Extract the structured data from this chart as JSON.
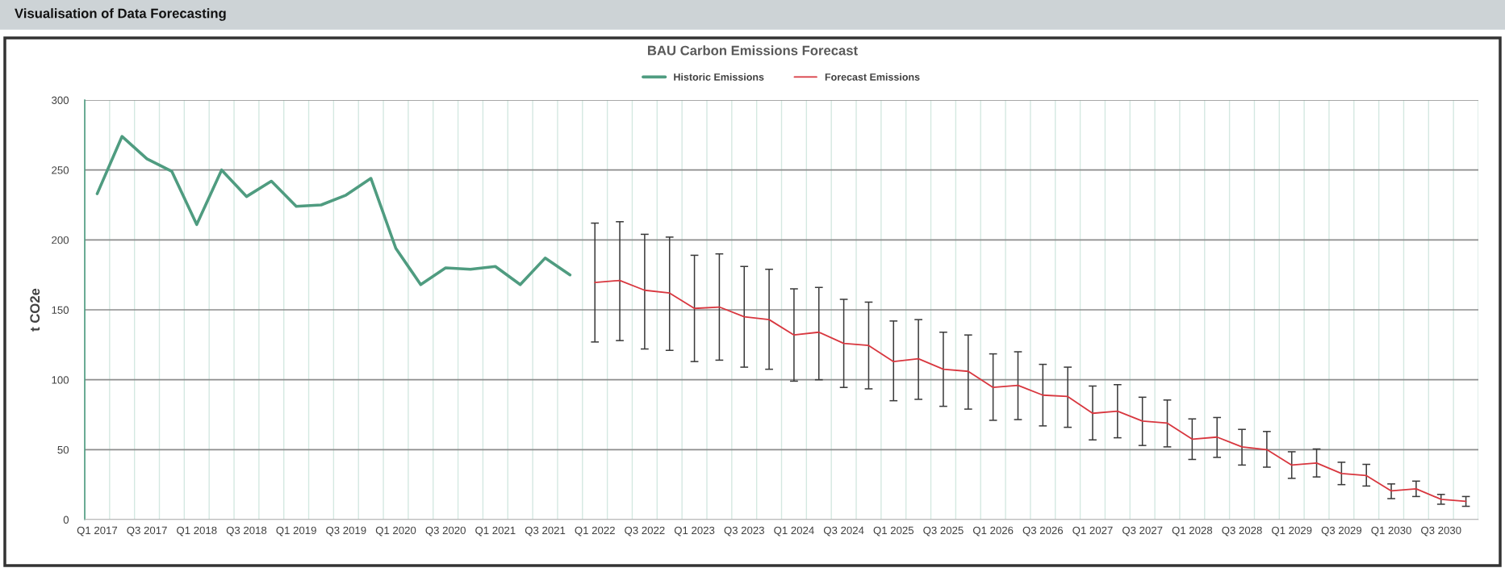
{
  "chart_data": {
    "type": "line",
    "title": "Visualisation of Data Forecasting",
    "subtitle": "BAU Carbon Emissions Forecast",
    "ylabel": "t CO2e",
    "categories": [
      "Q1 2017",
      null,
      "Q3 2017",
      null,
      "Q1 2018",
      null,
      "Q3 2018",
      null,
      "Q1 2019",
      null,
      "Q3 2019",
      null,
      "Q1 2020",
      null,
      "Q3 2020",
      null,
      "Q1 2021",
      null,
      "Q3 2021",
      null,
      "Q1 2022",
      null,
      "Q3 2022",
      null,
      "Q1 2023",
      null,
      "Q3 2023",
      null,
      "Q1 2024",
      null,
      "Q3 2024",
      null,
      "Q1 2025",
      null,
      "Q3 2025",
      null,
      "Q1 2026",
      null,
      "Q3 2026",
      null,
      "Q1 2027",
      null,
      "Q3 2027",
      null,
      "Q1 2028",
      null,
      "Q3 2028",
      null,
      "Q1 2029",
      null,
      "Q3 2029",
      null,
      "Q1 2030",
      null,
      "Q3 2030",
      null
    ],
    "series": [
      {
        "name": "Historic Emissions",
        "color": "#4f9c80",
        "values": [
          233,
          274,
          258,
          249,
          211,
          250,
          231,
          242,
          224,
          225,
          232,
          244,
          194,
          168,
          180,
          179,
          181,
          168,
          187,
          175,
          null,
          null,
          null,
          null,
          null,
          null,
          null,
          null,
          null,
          null,
          null,
          null,
          null,
          null,
          null,
          null,
          null,
          null,
          null,
          null,
          null,
          null,
          null,
          null,
          null,
          null,
          null,
          null,
          null,
          null,
          null,
          null,
          null,
          null,
          null,
          null
        ]
      },
      {
        "name": "Forecast Emissions",
        "color": "#d8373f",
        "values": [
          null,
          null,
          null,
          null,
          null,
          null,
          null,
          null,
          null,
          null,
          null,
          null,
          null,
          null,
          null,
          null,
          null,
          null,
          null,
          null,
          169.5,
          171,
          164,
          162,
          151,
          152,
          145,
          143,
          132,
          134,
          126,
          124.5,
          113,
          115,
          107.5,
          106,
          94.5,
          96,
          89,
          88,
          76,
          77.5,
          70.5,
          69,
          57.5,
          59,
          52,
          50,
          39,
          40.5,
          33,
          31.5,
          20.5,
          22,
          14.5,
          13
        ],
        "errors": [
          null,
          null,
          null,
          null,
          null,
          null,
          null,
          null,
          null,
          null,
          null,
          null,
          null,
          null,
          null,
          null,
          null,
          null,
          null,
          null,
          [
            127,
            212
          ],
          [
            128,
            213
          ],
          [
            122,
            204
          ],
          [
            121,
            202
          ],
          [
            113,
            189
          ],
          [
            114,
            190
          ],
          [
            109,
            181
          ],
          [
            107.5,
            179
          ],
          [
            99,
            165
          ],
          [
            100,
            166
          ],
          [
            94.5,
            157.5
          ],
          [
            93.5,
            155.5
          ],
          [
            85,
            142
          ],
          [
            86,
            143
          ],
          [
            81,
            134
          ],
          [
            79,
            132
          ],
          [
            71,
            118.5
          ],
          [
            71.5,
            120
          ],
          [
            67,
            111
          ],
          [
            66,
            109
          ],
          [
            57,
            95.5
          ],
          [
            58.5,
            96.5
          ],
          [
            53,
            87.5
          ],
          [
            52,
            85.5
          ],
          [
            43,
            72
          ],
          [
            44.5,
            73
          ],
          [
            39,
            64.5
          ],
          [
            37.5,
            63
          ],
          [
            29.5,
            48.5
          ],
          [
            30.5,
            50.5
          ],
          [
            25,
            41
          ],
          [
            24,
            39.5
          ],
          [
            15,
            25.5
          ],
          [
            16.5,
            27.5
          ],
          [
            11,
            18
          ],
          [
            9.5,
            16.5
          ]
        ]
      }
    ],
    "ylim": [
      0,
      300
    ],
    "yticks": [
      0,
      50,
      100,
      150,
      200,
      250,
      300
    ],
    "grid": true,
    "legend": "top"
  }
}
